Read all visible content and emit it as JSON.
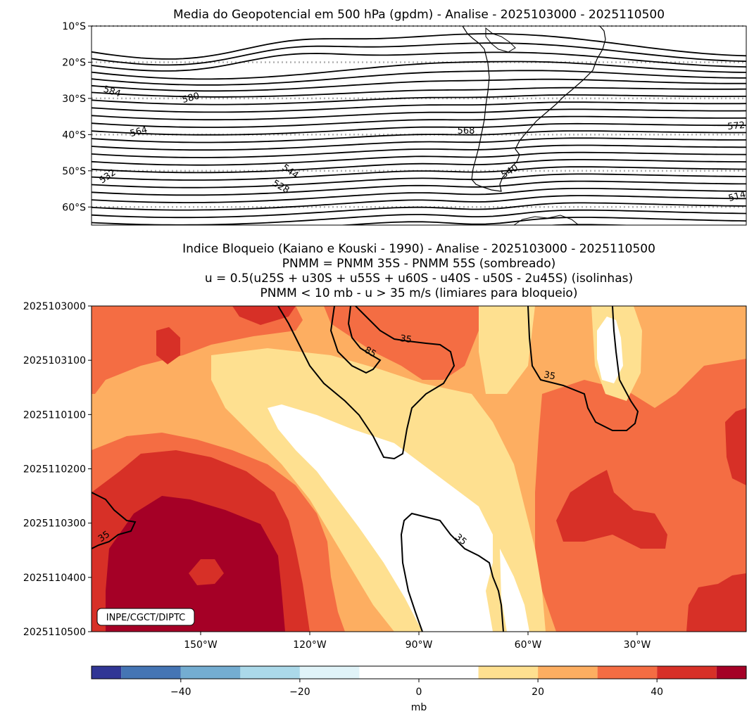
{
  "chart_data": [
    {
      "type": "contour",
      "title": "Media do Geopotencial em 500 hPa (gpdm) - Analise - 2025103000 - 2025110500",
      "y_ticks": [
        "10°S",
        "20°S",
        "30°S",
        "40°S",
        "50°S",
        "60°S"
      ],
      "y_range": [
        -10,
        -65
      ],
      "contour_labels": [
        "584",
        "580",
        "564",
        "568",
        "572",
        "532",
        "544",
        "528",
        "540",
        "514"
      ],
      "gridlines": "dotted at 10°S, 20°S, 30°S, 40°S, 50°S, 60°S"
    },
    {
      "type": "heatmap",
      "title_lines": [
        "Indice Bloqueio (Kaiano e Kouski - 1990) - Analise - 2025103000 - 2025110500",
        "PNMM = PNMM 35S - PNMM 55S (sombreado)",
        "u = 0.5(u25S + u30S + u55S + u60S - u40S - u50S - 2u45S) (isolinhas)",
        "PNMM < 10 mb - u > 35 m/s (limiares para bloqueio)"
      ],
      "y_ticks": [
        "2025103000",
        "2025103100",
        "2025110100",
        "2025110200",
        "2025110300",
        "2025110400",
        "2025110500"
      ],
      "x_ticks": [
        "150°W",
        "120°W",
        "90°W",
        "60°W",
        "30°W"
      ],
      "x_range": [
        -180,
        0
      ],
      "contour_labels": [
        "35",
        "85",
        "35",
        "35",
        "35"
      ],
      "credit": "INPE/CGCT/DIPTC"
    },
    {
      "type": "colorbar",
      "ticks": [
        "−40",
        "−20",
        "0",
        "20",
        "40"
      ],
      "label": "mb",
      "bounds": [
        -55,
        -50,
        -40,
        -30,
        -20,
        -10,
        0,
        10,
        20,
        30,
        40,
        50,
        55
      ],
      "colors": [
        "#313695",
        "#4575b4",
        "#74add1",
        "#abd9e9",
        "#e0f3f8",
        "#ffffff",
        "#ffffff",
        "#fee090",
        "#fdae61",
        "#f46d43",
        "#d73027",
        "#a50026"
      ]
    }
  ]
}
